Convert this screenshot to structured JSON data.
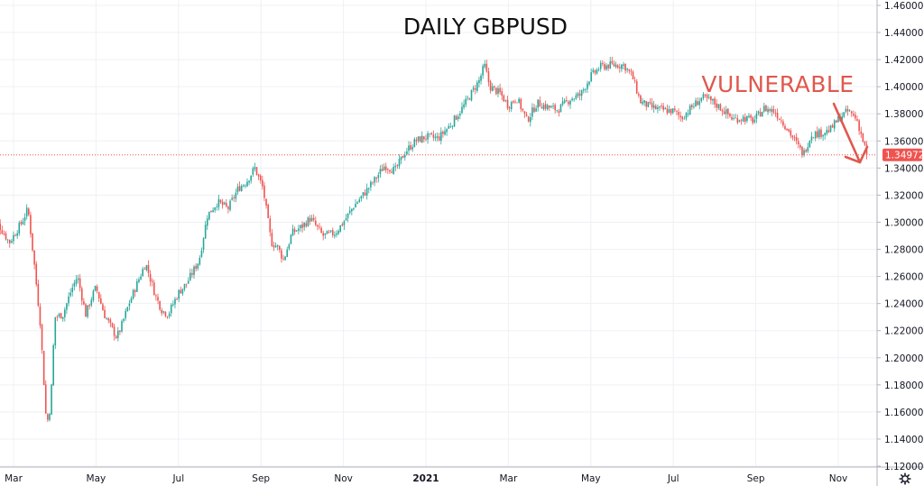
{
  "chart_data": {
    "type": "candlestick",
    "title": "DAILY GBPUSD",
    "ylim": [
      1.12,
      1.46
    ],
    "y_ticks": [
      "1.46000",
      "1.44000",
      "1.42000",
      "1.40000",
      "1.38000",
      "1.36000",
      "1.34000",
      "1.32000",
      "1.30000",
      "1.28000",
      "1.26000",
      "1.24000",
      "1.22000",
      "1.20000",
      "1.18000",
      "1.16000",
      "1.14000",
      "1.12000"
    ],
    "x_ticks": [
      {
        "label": "Mar",
        "month_index": 0,
        "bold": false
      },
      {
        "label": "May",
        "month_index": 2,
        "bold": false
      },
      {
        "label": "Jul",
        "month_index": 4,
        "bold": false
      },
      {
        "label": "Sep",
        "month_index": 6,
        "bold": false
      },
      {
        "label": "Nov",
        "month_index": 8,
        "bold": false
      },
      {
        "label": "2021",
        "month_index": 10,
        "bold": true
      },
      {
        "label": "Mar",
        "month_index": 12,
        "bold": false
      },
      {
        "label": "May",
        "month_index": 14,
        "bold": false
      },
      {
        "label": "Jul",
        "month_index": 16,
        "bold": false
      },
      {
        "label": "Sep",
        "month_index": 18,
        "bold": false
      },
      {
        "label": "Nov",
        "month_index": 20,
        "bold": false
      }
    ],
    "price_path": [
      [
        -0.6,
        1.292
      ],
      [
        -0.4,
        1.3
      ],
      [
        -0.1,
        1.285
      ],
      [
        0.2,
        1.3
      ],
      [
        0.35,
        1.31
      ],
      [
        0.5,
        1.27
      ],
      [
        0.65,
        1.225
      ],
      [
        0.8,
        1.15
      ],
      [
        0.9,
        1.165
      ],
      [
        1.0,
        1.23
      ],
      [
        1.2,
        1.232
      ],
      [
        1.4,
        1.25
      ],
      [
        1.55,
        1.26
      ],
      [
        1.75,
        1.232
      ],
      [
        1.9,
        1.245
      ],
      [
        2.0,
        1.252
      ],
      [
        2.2,
        1.232
      ],
      [
        2.5,
        1.215
      ],
      [
        2.6,
        1.222
      ],
      [
        2.8,
        1.24
      ],
      [
        3.0,
        1.255
      ],
      [
        3.2,
        1.27
      ],
      [
        3.45,
        1.245
      ],
      [
        3.6,
        1.235
      ],
      [
        3.75,
        1.232
      ],
      [
        4.0,
        1.248
      ],
      [
        4.2,
        1.255
      ],
      [
        4.5,
        1.272
      ],
      [
        4.7,
        1.305
      ],
      [
        4.95,
        1.315
      ],
      [
        5.2,
        1.31
      ],
      [
        5.45,
        1.325
      ],
      [
        5.65,
        1.33
      ],
      [
        5.85,
        1.34
      ],
      [
        6.05,
        1.325
      ],
      [
        6.25,
        1.285
      ],
      [
        6.4,
        1.282
      ],
      [
        6.55,
        1.272
      ],
      [
        6.75,
        1.292
      ],
      [
        7.0,
        1.297
      ],
      [
        7.2,
        1.303
      ],
      [
        7.5,
        1.29
      ],
      [
        7.8,
        1.292
      ],
      [
        8.0,
        1.3
      ],
      [
        8.25,
        1.312
      ],
      [
        8.5,
        1.321
      ],
      [
        8.8,
        1.333
      ],
      [
        9.0,
        1.342
      ],
      [
        9.25,
        1.338
      ],
      [
        9.5,
        1.352
      ],
      [
        9.75,
        1.36
      ],
      [
        10.0,
        1.363
      ],
      [
        10.3,
        1.362
      ],
      [
        10.6,
        1.372
      ],
      [
        10.9,
        1.385
      ],
      [
        11.1,
        1.395
      ],
      [
        11.3,
        1.405
      ],
      [
        11.42,
        1.416
      ],
      [
        11.55,
        1.4
      ],
      [
        11.8,
        1.395
      ],
      [
        12.0,
        1.386
      ],
      [
        12.2,
        1.392
      ],
      [
        12.45,
        1.375
      ],
      [
        12.7,
        1.388
      ],
      [
        12.95,
        1.385
      ],
      [
        13.2,
        1.383
      ],
      [
        13.5,
        1.391
      ],
      [
        13.75,
        1.394
      ],
      [
        14.0,
        1.408
      ],
      [
        14.25,
        1.415
      ],
      [
        14.5,
        1.416
      ],
      [
        14.8,
        1.416
      ],
      [
        15.0,
        1.408
      ],
      [
        15.2,
        1.389
      ],
      [
        15.45,
        1.385
      ],
      [
        15.7,
        1.383
      ],
      [
        16.0,
        1.382
      ],
      [
        16.2,
        1.377
      ],
      [
        16.45,
        1.385
      ],
      [
        16.7,
        1.392
      ],
      [
        16.95,
        1.389
      ],
      [
        17.2,
        1.383
      ],
      [
        17.45,
        1.376
      ],
      [
        17.7,
        1.377
      ],
      [
        17.95,
        1.375
      ],
      [
        18.2,
        1.384
      ],
      [
        18.45,
        1.382
      ],
      [
        18.7,
        1.372
      ],
      [
        18.95,
        1.36
      ],
      [
        19.15,
        1.35
      ],
      [
        19.35,
        1.365
      ],
      [
        19.6,
        1.366
      ],
      [
        19.8,
        1.368
      ],
      [
        20.05,
        1.378
      ],
      [
        20.25,
        1.382
      ],
      [
        20.45,
        1.376
      ],
      [
        20.6,
        1.36
      ],
      [
        20.7,
        1.35
      ]
    ],
    "last_price_label": "1.34972",
    "last_price": 1.34972,
    "annotation": "VULNERABLE",
    "colors": {
      "up": "#26a69a",
      "down": "#ef5350",
      "grid": "#eef0f3",
      "axis_text": "#131722",
      "annotation": "#e0584e",
      "price_line": "#ef5350"
    },
    "grid": true
  },
  "ui": {
    "settings_icon": "gear-icon"
  }
}
